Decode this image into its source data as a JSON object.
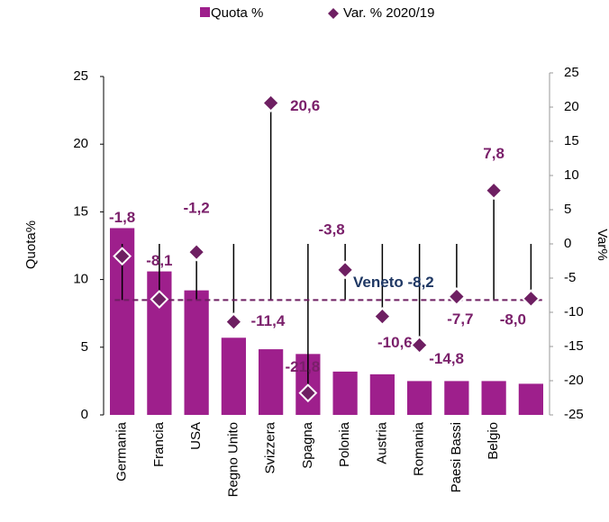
{
  "chart_data": {
    "type": "bar",
    "categories": [
      "Germania",
      "Francia",
      "USA",
      "Regno Unito",
      "Svizzera",
      "Spagna",
      "Polonia",
      "Austria",
      "Romania",
      "Paesi Bassi",
      "Belgio",
      null
    ],
    "series": [
      {
        "name": "Quota %",
        "color": "#9e1f8c",
        "values": [
          13.8,
          10.6,
          9.2,
          5.7,
          4.85,
          4.5,
          3.2,
          3.0,
          2.5,
          2.5,
          2.5,
          2.3
        ]
      },
      {
        "name": "Var. % 2020/19",
        "color": "#6e1f62",
        "axis": "y2",
        "type": "scatter",
        "values": [
          -1.8,
          -8.1,
          -1.2,
          -11.4,
          20.6,
          -21.8,
          -3.8,
          -10.6,
          -14.8,
          -7.7,
          7.8,
          -8.0
        ],
        "value_labels": [
          "-1,8",
          "-8,1",
          "-1,2",
          "-11,4",
          "20,6",
          "-21,8",
          "-3,8",
          "-10,6",
          "-14,8",
          "-7,7",
          "7,8",
          "-8,0"
        ]
      }
    ],
    "reference_line": {
      "label": "Veneto -8,2",
      "value": -8.2,
      "axis": "y2",
      "color": "#6e1f62"
    },
    "ylabel": "Quota%",
    "y2label": "Var%",
    "ylim": [
      0,
      25
    ],
    "yticks": [
      0,
      5,
      10,
      15,
      20,
      25
    ],
    "y2lim": [
      -25,
      25
    ],
    "y2ticks": [
      -25,
      -20,
      -15,
      -10,
      -5,
      0,
      5,
      10,
      15,
      20,
      25
    ],
    "legend": "top"
  }
}
